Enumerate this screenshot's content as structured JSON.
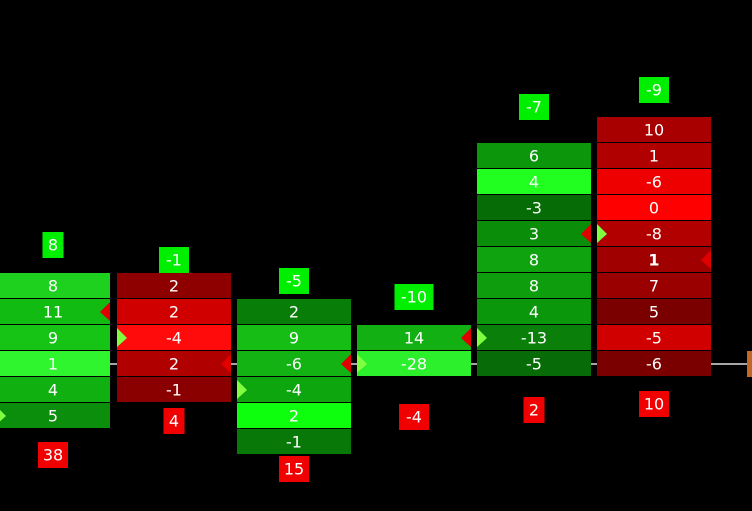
{
  "columns": [
    {
      "top": 8,
      "bottom": 38,
      "cells": [
        {
          "value": 8,
          "color": "#1ed11e"
        },
        {
          "value": 11,
          "color": "#12bb12",
          "marker": "right"
        },
        {
          "value": 9,
          "color": "#16c416"
        },
        {
          "value": 1,
          "color": "#2ef52e"
        },
        {
          "value": 4,
          "color": "#0fb00f"
        },
        {
          "value": 5,
          "color": "#0b8e0b",
          "marker": "left"
        }
      ]
    },
    {
      "top": -1,
      "bottom": 4,
      "cells": [
        {
          "value": 2,
          "color": "#8e0000"
        },
        {
          "value": 2,
          "color": "#d00000"
        },
        {
          "value": -4,
          "color": "#ff0b0b",
          "marker": "left"
        },
        {
          "value": 2,
          "color": "#b00000",
          "marker": "right"
        },
        {
          "value": -1,
          "color": "#8a0000"
        }
      ]
    },
    {
      "top": -5,
      "bottom": 15,
      "cells": [
        {
          "value": 2,
          "color": "#087d08"
        },
        {
          "value": 9,
          "color": "#15bd15"
        },
        {
          "value": -6,
          "color": "#12b312",
          "marker": "right"
        },
        {
          "value": -4,
          "color": "#0ea60e",
          "marker": "left"
        },
        {
          "value": 2,
          "color": "#0dff0d"
        },
        {
          "value": -1,
          "color": "#087808"
        }
      ]
    },
    {
      "top": -10,
      "bottom": -4,
      "cells": [
        {
          "value": 14,
          "color": "#12b012",
          "marker": "right"
        },
        {
          "value": -28,
          "color": "#2bf02b",
          "marker": "left"
        }
      ]
    },
    {
      "top": -7,
      "bottom": 2,
      "cells": [
        {
          "value": 6,
          "color": "#0b960b"
        },
        {
          "value": 4,
          "color": "#20ff20"
        },
        {
          "value": -3,
          "color": "#066d06"
        },
        {
          "value": 3,
          "color": "#0a8e0a",
          "marker": "right"
        },
        {
          "value": 8,
          "color": "#0fa40f"
        },
        {
          "value": 8,
          "color": "#0d9d0d"
        },
        {
          "value": 4,
          "color": "#0b970b"
        },
        {
          "value": -13,
          "color": "#0a800a",
          "marker": "left"
        },
        {
          "value": -5,
          "color": "#076b07"
        }
      ]
    },
    {
      "top": -9,
      "bottom": 10,
      "cells": [
        {
          "value": 10,
          "color": "#a80000"
        },
        {
          "value": 1,
          "color": "#b00000"
        },
        {
          "value": -6,
          "color": "#ee0000"
        },
        {
          "value": 0,
          "color": "#ff0000"
        },
        {
          "value": -8,
          "color": "#b20000",
          "marker": "left"
        },
        {
          "value": 1,
          "color": "#a00000",
          "marker": "right",
          "bold": true
        },
        {
          "value": 7,
          "color": "#9a0000"
        },
        {
          "value": 5,
          "color": "#7a0000"
        },
        {
          "value": -5,
          "color": "#d00000"
        },
        {
          "value": -6,
          "color": "#7a0000"
        }
      ]
    }
  ]
}
